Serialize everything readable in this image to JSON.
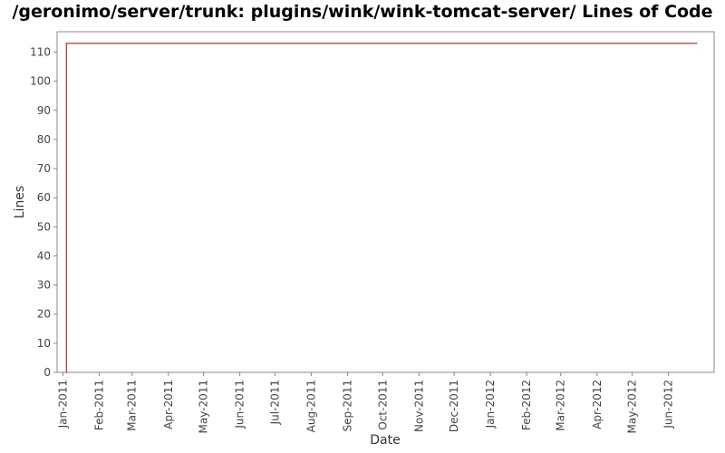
{
  "chart_data": {
    "type": "line",
    "title": "/geronimo/server/trunk: plugins/wink/wink-tomcat-server/ Lines of Code",
    "xlabel": "Date",
    "ylabel": "Lines",
    "ylim": [
      0,
      117
    ],
    "yticks": [
      0,
      10,
      20,
      30,
      40,
      50,
      60,
      70,
      80,
      90,
      100,
      110
    ],
    "xlim": [
      "2010-12-27",
      "2012-07-10"
    ],
    "xticks": [
      {
        "date": "2011-01-01",
        "label": "Jan-2011"
      },
      {
        "date": "2011-02-01",
        "label": "Feb-2011"
      },
      {
        "date": "2011-03-01",
        "label": "Mar-2011"
      },
      {
        "date": "2011-04-01",
        "label": "Apr-2011"
      },
      {
        "date": "2011-05-01",
        "label": "May-2011"
      },
      {
        "date": "2011-06-01",
        "label": "Jun-2011"
      },
      {
        "date": "2011-07-01",
        "label": "Jul-2011"
      },
      {
        "date": "2011-08-01",
        "label": "Aug-2011"
      },
      {
        "date": "2011-09-01",
        "label": "Sep-2011"
      },
      {
        "date": "2011-10-01",
        "label": "Oct-2011"
      },
      {
        "date": "2011-11-01",
        "label": "Nov-2011"
      },
      {
        "date": "2011-12-01",
        "label": "Dec-2011"
      },
      {
        "date": "2012-01-01",
        "label": "Jan-2012"
      },
      {
        "date": "2012-02-01",
        "label": "Feb-2012"
      },
      {
        "date": "2012-03-01",
        "label": "Mar-2012"
      },
      {
        "date": "2012-04-01",
        "label": "Apr-2012"
      },
      {
        "date": "2012-05-01",
        "label": "May-2012"
      },
      {
        "date": "2012-06-01",
        "label": "Jun-2012"
      }
    ],
    "series": [
      {
        "color": "#cc0000",
        "points": [
          {
            "x": "2011-01-04",
            "y": 0
          },
          {
            "x": "2011-01-04",
            "y": 113
          },
          {
            "x": "2012-06-25",
            "y": 113
          }
        ]
      }
    ],
    "grid": false,
    "legend": "none"
  }
}
